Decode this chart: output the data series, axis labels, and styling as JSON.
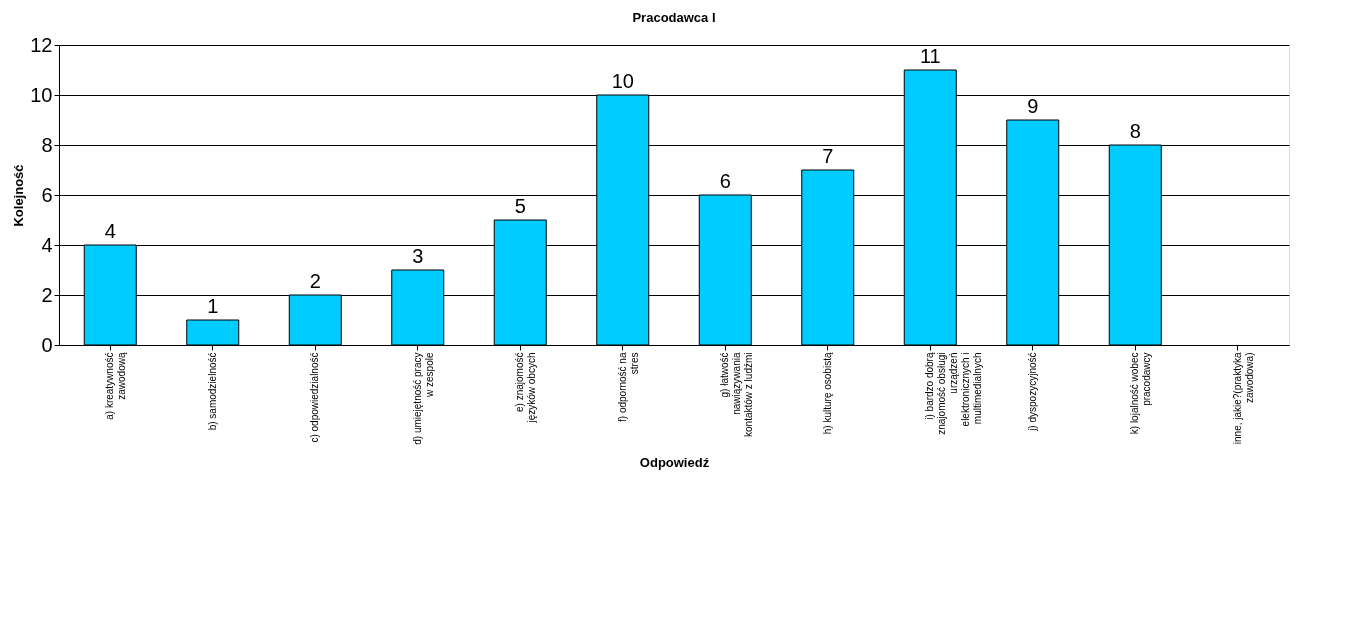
{
  "chart_data": {
    "type": "bar",
    "title": "Pracodawca I",
    "xlabel": "Odpowiedź",
    "ylabel": "Kolejność",
    "categories": [
      "a) kreatywność\nzawodową",
      "b) samodzielność",
      "c) odpowiedzialność",
      "d) umiejętność pracy\nw zespole",
      "e) znajomość\njęzyków obcych",
      "f) odporność na\nstres",
      "g) łatwość\nnawiązywania\nkontaktów z ludźmi",
      "h) kulturę osobistą",
      "i) bardzo dobrą\nznajomość obsługi\nurządzeń\nelektronicznych i\nmultimedialnych",
      "j) dyspozycyjność",
      "k) lojalność wobec\npracodawcy",
      "inne, jakie?(praktyka\nzawodowa)"
    ],
    "values": [
      4,
      1,
      2,
      3,
      5,
      10,
      6,
      7,
      11,
      9,
      8,
      null
    ],
    "color": "#00ccff",
    "ylim": [
      0,
      12
    ],
    "yticks": [
      0,
      2,
      4,
      6,
      8,
      10,
      12
    ],
    "grid": "y",
    "data_labels": true
  }
}
